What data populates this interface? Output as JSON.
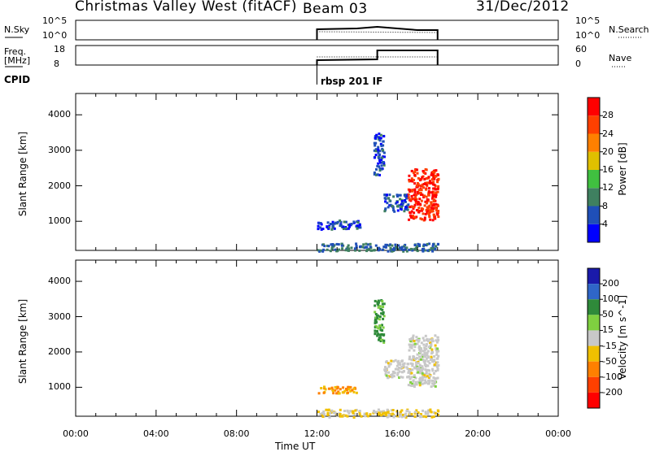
{
  "header": {
    "station": "Christmas Valley West (fitACF)",
    "beam": "Beam 03",
    "date": "31/Dec/2012"
  },
  "strip_labels": {
    "nsky": "N.Sky",
    "nsky_top": "10^5",
    "nsky_bottom": "10^0",
    "nsky_right_top": "10^5",
    "nsky_right_bottom": "10^0",
    "nsearch": "N.Search",
    "freq": "Freq.",
    "freq_unit": "[MHz]",
    "freq_top": "18",
    "freq_bottom": "8",
    "nave_top": "60",
    "nave_bottom": "0",
    "nave": "Nave",
    "cpid": "CPID",
    "cpid_value": "rbsp 201 IF"
  },
  "colors": {
    "power": [
      "#0000ff",
      "#1f4fb8",
      "#3f8060",
      "#40c040",
      "#e0c000",
      "#ff8000",
      "#ff4000",
      "#ff0000"
    ],
    "velocity": [
      "#1a1aaa",
      "#2f66c8",
      "#2f8a3a",
      "#7fd040",
      "#c8c8c8",
      "#f0c000",
      "#ff8000",
      "#ff4000",
      "#ff0000"
    ],
    "ground_scatter": "#c8c8c8"
  },
  "chart_data": [
    {
      "type": "heatmap",
      "panel": "power",
      "xlabel": "Time UT",
      "ylabel": "Slant Range [km]",
      "xlim": [
        "00:00",
        "24:00"
      ],
      "ylim": [
        180,
        4600
      ],
      "x_ticks": [
        "00:00",
        "04:00",
        "08:00",
        "12:00",
        "16:00",
        "20:00",
        "00:00"
      ],
      "y_ticks": [
        1000,
        2000,
        3000,
        4000
      ],
      "colorbar": {
        "label": "Power [dB]",
        "ticks": [
          4,
          8,
          12,
          16,
          20,
          24,
          28
        ],
        "range": [
          0,
          32
        ]
      },
      "regions": [
        {
          "t_start": 12.0,
          "t_end": 14.2,
          "r_min": 800,
          "r_max": 1050,
          "value": 5
        },
        {
          "t_start": 12.0,
          "t_end": 18.0,
          "r_min": 180,
          "r_max": 400,
          "value": 8
        },
        {
          "t_start": 14.8,
          "t_end": 15.3,
          "r_min": 2300,
          "r_max": 3500,
          "value": 6
        },
        {
          "t_start": 15.3,
          "t_end": 16.5,
          "r_min": 1300,
          "r_max": 1800,
          "value": 6
        },
        {
          "t_start": 16.5,
          "t_end": 18.0,
          "r_min": 1050,
          "r_max": 2500,
          "value": 28
        }
      ]
    },
    {
      "type": "heatmap",
      "panel": "velocity",
      "xlabel": "Time UT",
      "ylabel": "Slant Range [km]",
      "xlim": [
        "00:00",
        "24:00"
      ],
      "ylim": [
        180,
        4600
      ],
      "x_ticks": [
        "00:00",
        "04:00",
        "08:00",
        "12:00",
        "16:00",
        "20:00",
        "00:00"
      ],
      "y_ticks": [
        1000,
        2000,
        3000,
        4000
      ],
      "colorbar": {
        "label": "Velocity [m s^-1]",
        "ticks": [
          200,
          100,
          50,
          15,
          -15,
          -50,
          -100,
          -200
        ]
      },
      "regions": [
        {
          "t_start": 12.0,
          "t_end": 14.0,
          "r_min": 850,
          "r_max": 1050,
          "value": -50
        },
        {
          "t_start": 12.0,
          "t_end": 18.0,
          "r_min": 180,
          "r_max": 400,
          "value": -20
        },
        {
          "t_start": 14.8,
          "t_end": 15.3,
          "r_min": 2300,
          "r_max": 3500,
          "value": 60
        },
        {
          "t_start": 15.3,
          "t_end": 16.5,
          "r_min": 1300,
          "r_max": 1800,
          "value": 0
        },
        {
          "t_start": 16.5,
          "t_end": 18.0,
          "r_min": 1050,
          "r_max": 2500,
          "value": 0
        }
      ]
    }
  ]
}
